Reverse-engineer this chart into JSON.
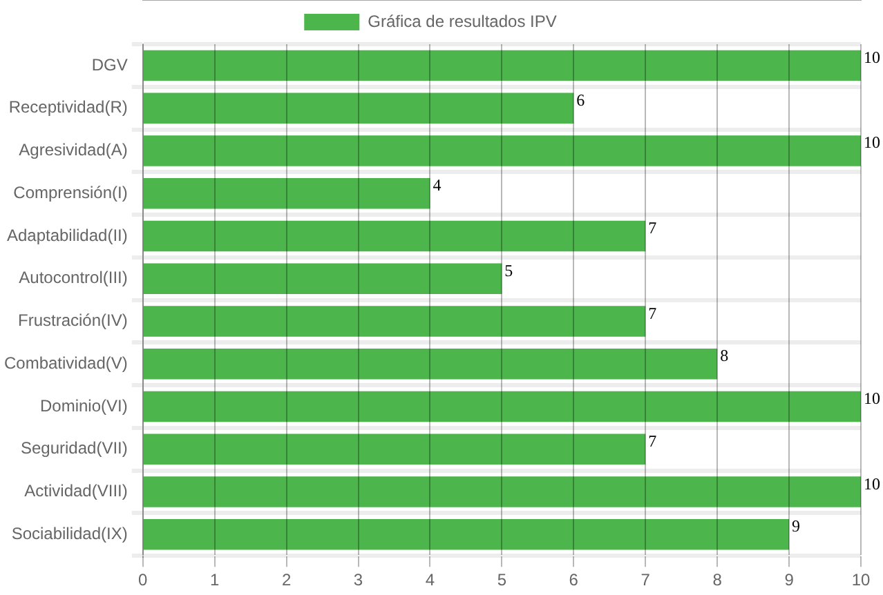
{
  "chart_data": {
    "type": "bar",
    "orientation": "horizontal",
    "categories": [
      "DGV",
      "Receptividad(R)",
      "Agresividad(A)",
      "Comprensión(I)",
      "Adaptabilidad(II)",
      "Autocontrol(III)",
      "Frustración(IV)",
      "Combatividad(V)",
      "Dominio(VI)",
      "Seguridad(VII)",
      "Actividad(VIII)",
      "Sociabilidad(IX)"
    ],
    "series": [
      {
        "name": "Gráfica de resultados IPV",
        "color": "#4cb64c",
        "values": [
          10,
          6,
          10,
          4,
          7,
          5,
          7,
          8,
          10,
          7,
          10,
          9
        ]
      }
    ],
    "xlim": [
      0,
      10
    ],
    "xticks": [
      0,
      1,
      2,
      3,
      4,
      5,
      6,
      7,
      8,
      9,
      10
    ],
    "grid": true,
    "legend": "top",
    "data_labels": true
  }
}
